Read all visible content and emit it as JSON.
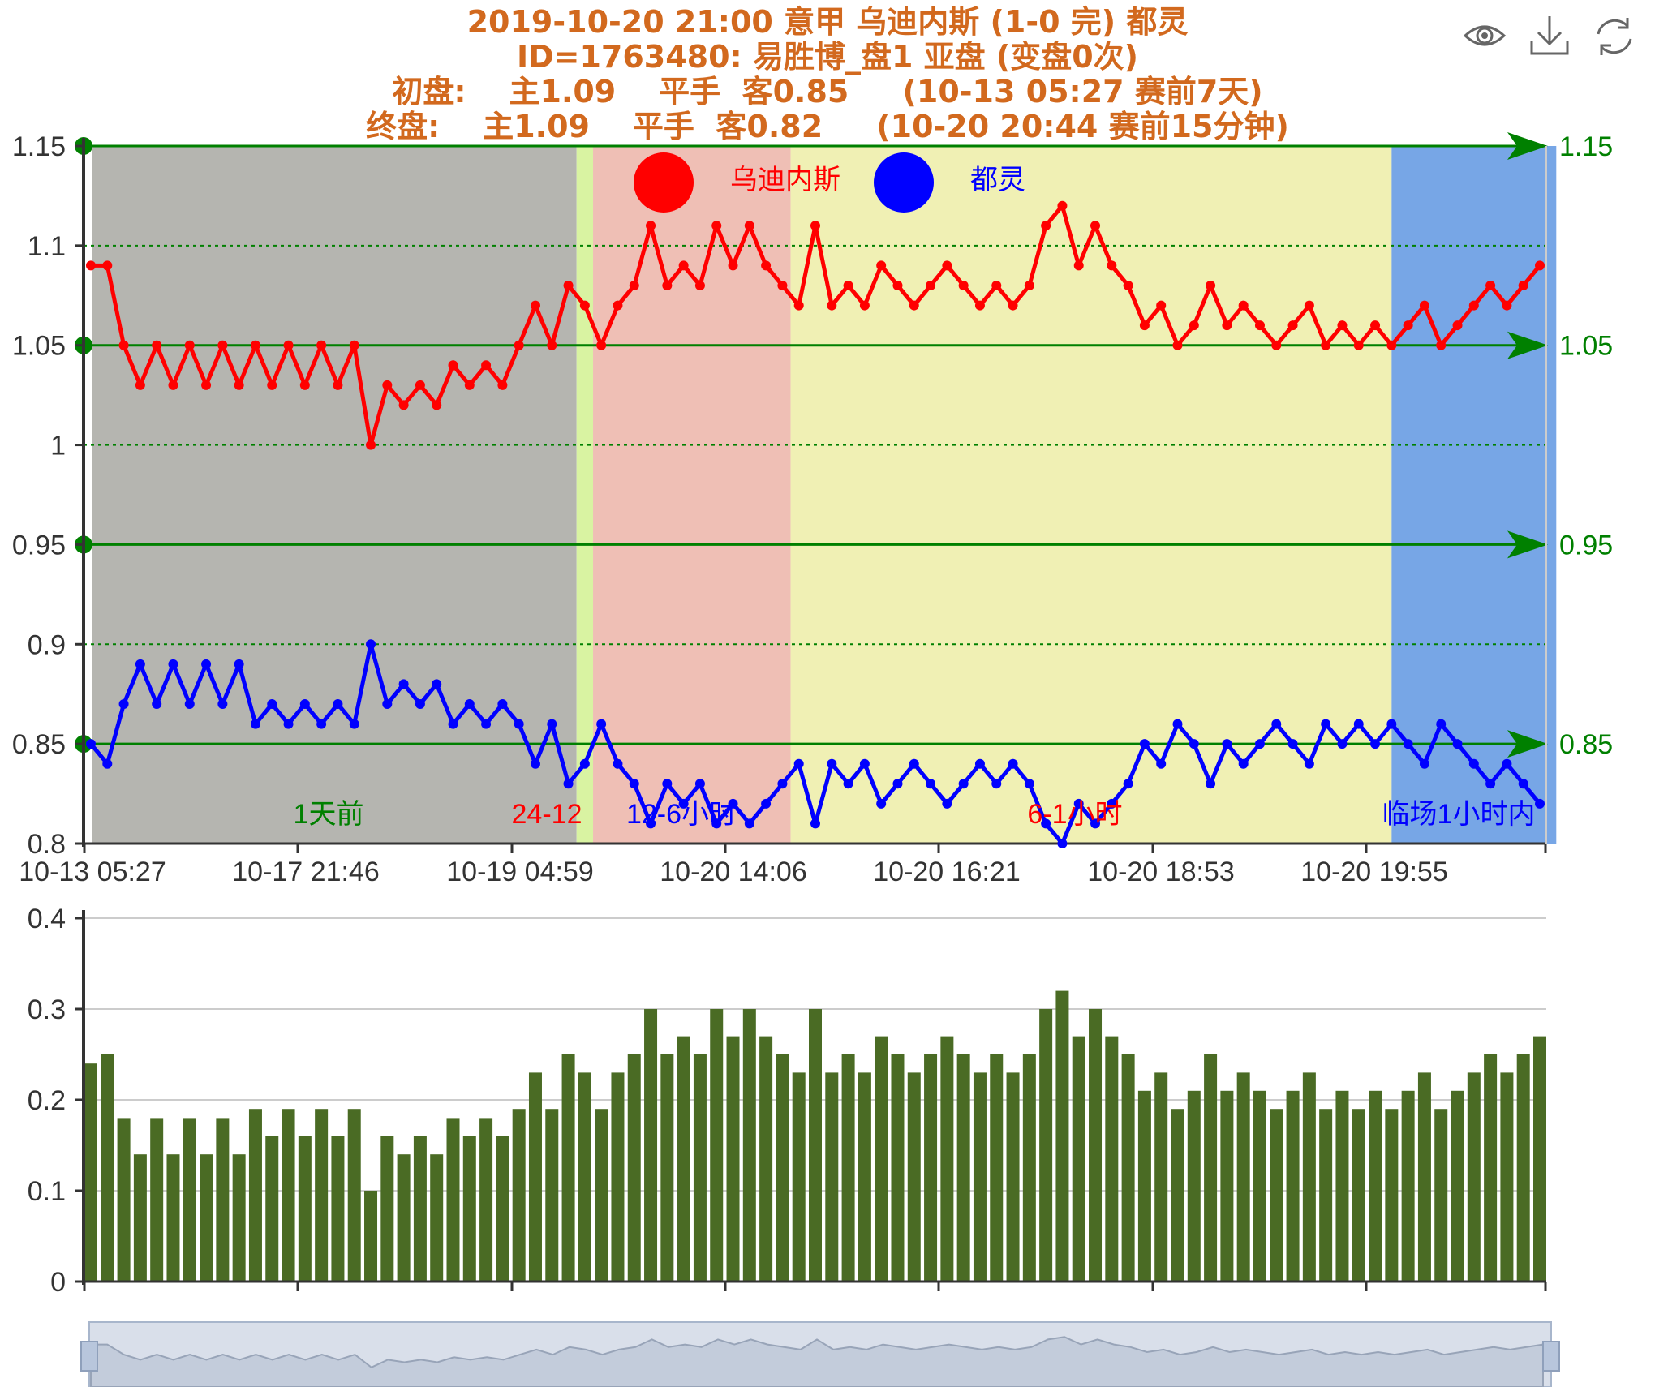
{
  "title": {
    "line1": "2019-10-20 21:00 意甲 乌迪内斯 (1-0 完) 都灵",
    "line2": "ID=1763480: 易胜博_盘1 亚盘 (变盘0次)",
    "line3": "初盘:    主1.09    平手  客0.85     (10-13 05:27 赛前7天)",
    "line4": "终盘:    主1.09    平手  客0.82     (10-20 20:44 赛前15分钟)"
  },
  "toolbox": {
    "icons": [
      "eye-icon",
      "download-icon",
      "refresh-icon"
    ]
  },
  "colors": {
    "title": "#d2691e",
    "home": "#ff0000",
    "away": "#0000ff",
    "bars": "#4a6b24",
    "markline": "#008000",
    "zone_1day": "#b5b5b0",
    "zone_24_12": "#d9f3a2",
    "zone_12_6": "#efbfb5",
    "zone_6_1": "#f0f0b4",
    "zone_live": "#77a6e6"
  },
  "chart_data": [
    {
      "type": "line",
      "legend": [
        "乌迪内斯",
        "都灵"
      ],
      "legend_position": "top-center",
      "ylim": [
        0.8,
        1.15
      ],
      "y_ticks": [
        "0.8",
        "0.85",
        "0.9",
        "0.95",
        "1",
        "1.05",
        "1.1",
        "1.15"
      ],
      "x_tick_labels": [
        "10-13 05:27",
        "10-17 21:46",
        "10-19 04:59",
        "10-20 14:06",
        "10-20 16:21",
        "10-20 18:53",
        "10-20 19:55"
      ],
      "grid": "dashed",
      "series": [
        {
          "name": "乌迪内斯",
          "values": [
            1.09,
            1.09,
            1.05,
            1.03,
            1.05,
            1.03,
            1.05,
            1.03,
            1.05,
            1.03,
            1.05,
            1.03,
            1.05,
            1.03,
            1.05,
            1.03,
            1.05,
            1.0,
            1.03,
            1.02,
            1.03,
            1.02,
            1.04,
            1.03,
            1.04,
            1.03,
            1.05,
            1.07,
            1.05,
            1.08,
            1.07,
            1.05,
            1.07,
            1.08,
            1.11,
            1.08,
            1.09,
            1.08,
            1.11,
            1.09,
            1.11,
            1.09,
            1.08,
            1.07,
            1.11,
            1.07,
            1.08,
            1.07,
            1.09,
            1.08,
            1.07,
            1.08,
            1.09,
            1.08,
            1.07,
            1.08,
            1.07,
            1.08,
            1.11,
            1.12,
            1.09,
            1.11,
            1.09,
            1.08,
            1.06,
            1.07,
            1.05,
            1.06,
            1.08,
            1.06,
            1.07,
            1.06,
            1.05,
            1.06,
            1.07,
            1.05,
            1.06,
            1.05,
            1.06,
            1.05,
            1.06,
            1.07,
            1.05,
            1.06,
            1.07,
            1.08,
            1.07,
            1.08,
            1.09
          ]
        },
        {
          "name": "都灵",
          "values": [
            0.85,
            0.84,
            0.87,
            0.89,
            0.87,
            0.89,
            0.87,
            0.89,
            0.87,
            0.89,
            0.86,
            0.87,
            0.86,
            0.87,
            0.86,
            0.87,
            0.86,
            0.9,
            0.87,
            0.88,
            0.87,
            0.88,
            0.86,
            0.87,
            0.86,
            0.87,
            0.86,
            0.84,
            0.86,
            0.83,
            0.84,
            0.86,
            0.84,
            0.83,
            0.81,
            0.83,
            0.82,
            0.83,
            0.81,
            0.82,
            0.81,
            0.82,
            0.83,
            0.84,
            0.81,
            0.84,
            0.83,
            0.84,
            0.82,
            0.83,
            0.84,
            0.83,
            0.82,
            0.83,
            0.84,
            0.83,
            0.84,
            0.83,
            0.81,
            0.8,
            0.82,
            0.81,
            0.82,
            0.83,
            0.85,
            0.84,
            0.86,
            0.85,
            0.83,
            0.85,
            0.84,
            0.85,
            0.86,
            0.85,
            0.84,
            0.86,
            0.85,
            0.86,
            0.85,
            0.86,
            0.85,
            0.84,
            0.86,
            0.85,
            0.84,
            0.83,
            0.84,
            0.83,
            0.82
          ]
        }
      ],
      "mark_lines": [
        {
          "label": "1.15",
          "value": 1.15
        },
        {
          "label": "1.05",
          "value": 1.05
        },
        {
          "label": "0.95",
          "value": 0.95
        },
        {
          "label": "0.85",
          "value": 0.85
        }
      ],
      "zones": [
        {
          "label": "1天前",
          "from": 0,
          "to": 29.5,
          "color_key": "zone_1day",
          "label_color": "#008000"
        },
        {
          "label": "24-12",
          "from": 29.5,
          "to": 30.5,
          "color_key": "zone_24_12",
          "label_color": "#ff0000"
        },
        {
          "label": "12-6小时",
          "from": 30.5,
          "to": 42.5,
          "color_key": "zone_12_6",
          "label_color": "#0000ff"
        },
        {
          "label": "6-1小时",
          "from": 42.5,
          "to": 79,
          "color_key": "zone_6_1",
          "label_color": "#ff0000"
        },
        {
          "label": "临场1小时内",
          "from": 79,
          "to": 89,
          "color_key": "zone_live",
          "label_color": "#0000ff"
        }
      ]
    },
    {
      "type": "bar",
      "ylim": [
        0,
        0.4
      ],
      "y_ticks": [
        "0",
        "0.1",
        "0.2",
        "0.3",
        "0.4"
      ],
      "grid": "solid",
      "values": [
        0.24,
        0.25,
        0.18,
        0.14,
        0.18,
        0.14,
        0.18,
        0.14,
        0.18,
        0.14,
        0.19,
        0.16,
        0.19,
        0.16,
        0.19,
        0.16,
        0.19,
        0.1,
        0.16,
        0.14,
        0.16,
        0.14,
        0.18,
        0.16,
        0.18,
        0.16,
        0.19,
        0.23,
        0.19,
        0.25,
        0.23,
        0.19,
        0.23,
        0.25,
        0.3,
        0.25,
        0.27,
        0.25,
        0.3,
        0.27,
        0.3,
        0.27,
        0.25,
        0.23,
        0.3,
        0.23,
        0.25,
        0.23,
        0.27,
        0.25,
        0.23,
        0.25,
        0.27,
        0.25,
        0.23,
        0.25,
        0.23,
        0.25,
        0.3,
        0.32,
        0.27,
        0.3,
        0.27,
        0.25,
        0.21,
        0.23,
        0.19,
        0.21,
        0.25,
        0.21,
        0.23,
        0.21,
        0.19,
        0.21,
        0.23,
        0.19,
        0.21,
        0.19,
        0.21,
        0.19,
        0.21,
        0.23,
        0.19,
        0.21,
        0.23,
        0.25,
        0.23,
        0.25,
        0.27
      ]
    }
  ]
}
